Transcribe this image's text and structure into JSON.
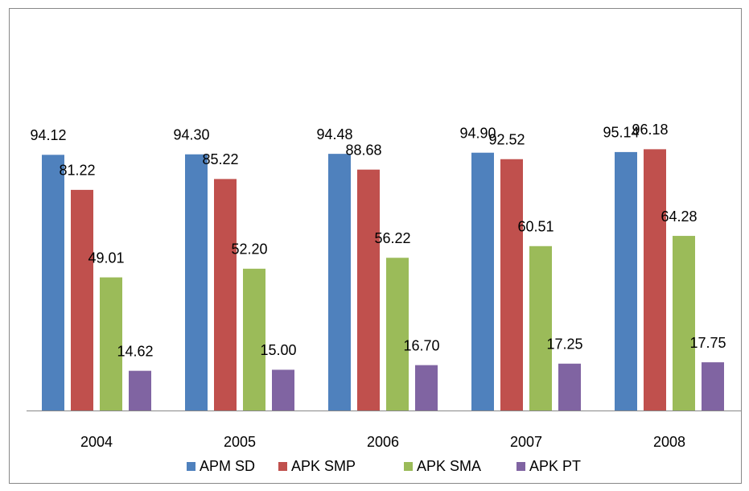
{
  "chart_data": {
    "type": "bar",
    "categories": [
      "2004",
      "2005",
      "2006",
      "2007",
      "2008"
    ],
    "series": [
      {
        "name": "APM SD",
        "color": "#4f81bd",
        "values": [
          94.12,
          94.3,
          94.48,
          94.9,
          95.14
        ],
        "value_labels": [
          "94.12",
          "94.30",
          "94.48",
          "94.90",
          "95.14"
        ]
      },
      {
        "name": "APK SMP",
        "color": "#c0504d",
        "values": [
          81.22,
          85.22,
          88.68,
          92.52,
          96.18
        ],
        "value_labels": [
          "81.22",
          "85.22",
          "88.68",
          "92.52",
          "96.18"
        ]
      },
      {
        "name": "APK SMA",
        "color": "#9bbb59",
        "values": [
          49.01,
          52.2,
          56.22,
          60.51,
          64.28
        ],
        "value_labels": [
          "49.01",
          "52.20",
          "56.22",
          "60.51",
          "64.28"
        ]
      },
      {
        "name": "APK PT",
        "color": "#8064a2",
        "values": [
          14.62,
          15.0,
          16.7,
          17.25,
          17.75
        ],
        "value_labels": [
          "14.62",
          "15.00",
          "16.70",
          "17.25",
          "17.75"
        ]
      }
    ],
    "ylim": [
      0,
      120
    ],
    "legend": "bottom"
  }
}
